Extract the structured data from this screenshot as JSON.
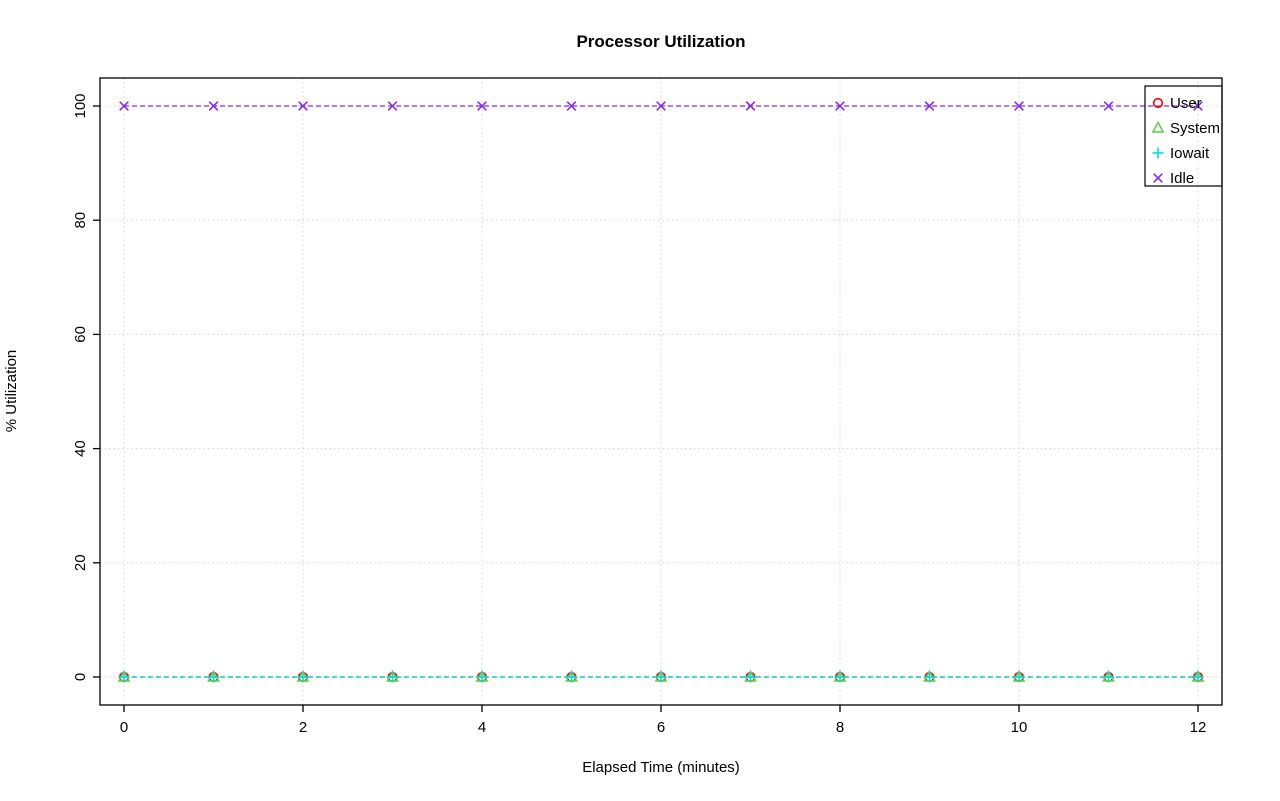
{
  "chart_data": {
    "type": "line",
    "title": "Processor Utilization",
    "xlabel": "Elapsed Time (minutes)",
    "ylabel": "% Utilization",
    "x": [
      0,
      1,
      2,
      3,
      4,
      5,
      6,
      7,
      8,
      9,
      10,
      11,
      12
    ],
    "xticks": [
      0,
      2,
      4,
      6,
      8,
      10,
      12
    ],
    "yticks": [
      0,
      20,
      40,
      60,
      80,
      100
    ],
    "xlim": [
      0,
      12
    ],
    "ylim": [
      0,
      100
    ],
    "grid": true,
    "grid_style": "dotted",
    "line_style": "dashed",
    "legend_position": "top-right",
    "series": [
      {
        "name": "User",
        "marker": "circle",
        "color": "#ff0000",
        "values": [
          0,
          0,
          0,
          0,
          0,
          0,
          0,
          0,
          0,
          0,
          0,
          0,
          0
        ]
      },
      {
        "name": "System",
        "marker": "triangle",
        "color": "#61d04f",
        "values": [
          0,
          0,
          0,
          0,
          0,
          0,
          0,
          0,
          0,
          0,
          0,
          0,
          0
        ]
      },
      {
        "name": "Iowait",
        "marker": "plus",
        "color": "#00dddd",
        "values": [
          0,
          0,
          0,
          0,
          0,
          0,
          0,
          0,
          0,
          0,
          0,
          0,
          0
        ]
      },
      {
        "name": "Idle",
        "marker": "x",
        "color": "#8a2be2",
        "values": [
          100,
          100,
          100,
          100,
          100,
          100,
          100,
          100,
          100,
          100,
          100,
          100,
          100
        ]
      }
    ]
  }
}
